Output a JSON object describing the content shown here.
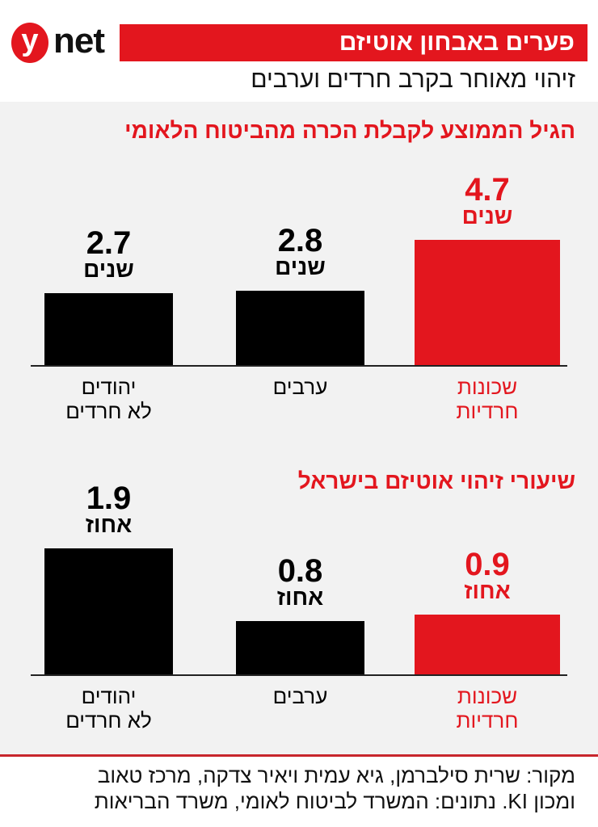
{
  "logo": {
    "y": "y",
    "net": "net"
  },
  "header": {
    "title": "פערים באבחון אוטיזם",
    "subtitle": "זיהוי מאוחר בקרב חרדים וערבים"
  },
  "chart_data": [
    {
      "type": "bar",
      "title": "הגיל הממוצע לקבלת הכרה מהביטוח הלאומי",
      "categories": [
        [
          "שכונות",
          "חרדיות"
        ],
        [
          "ערבים"
        ],
        [
          "יהודים",
          "לא חרדים"
        ]
      ],
      "values": [
        4.7,
        2.8,
        2.7
      ],
      "value_labels": [
        "4.7",
        "2.8",
        "2.7"
      ],
      "unit": "שנים",
      "colors": [
        "#e3161e",
        "#000000",
        "#000000"
      ],
      "ylim": [
        0,
        4.7
      ]
    },
    {
      "type": "bar",
      "title": "שיעורי זיהוי אוטיזם בישראל",
      "categories": [
        [
          "שכונות",
          "חרדיות"
        ],
        [
          "ערבים"
        ],
        [
          "יהודים",
          "לא חרדים"
        ]
      ],
      "values": [
        0.9,
        0.8,
        1.9
      ],
      "value_labels": [
        "0.9",
        "0.8",
        "1.9"
      ],
      "unit": "אחוז",
      "colors": [
        "#e3161e",
        "#000000",
        "#000000"
      ],
      "ylim": [
        0,
        1.9
      ]
    }
  ],
  "footer": {
    "line1": "מקור: שרית סילברמן, גיא עמית ויאיר צדקה, מרכז טאוב",
    "line2": "ומכון KI. נתונים: המשרד לביטוח לאומי, משרד הבריאות"
  }
}
